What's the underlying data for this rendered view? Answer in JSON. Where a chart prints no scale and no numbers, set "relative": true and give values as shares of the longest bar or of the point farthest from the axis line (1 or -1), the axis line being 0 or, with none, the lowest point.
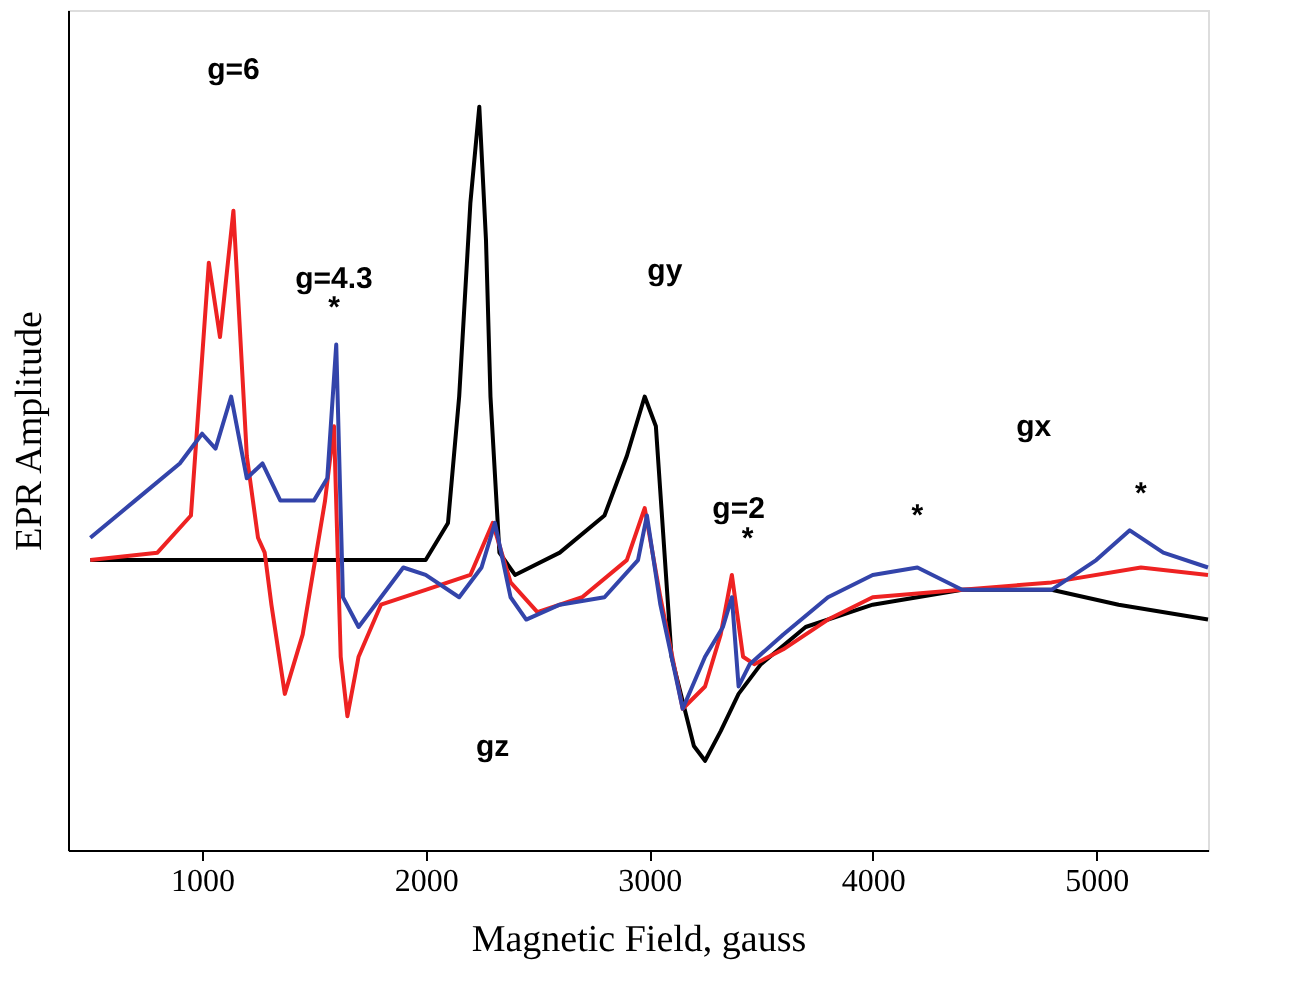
{
  "chart_data": {
    "type": "line",
    "relative": true,
    "xlabel": "Magnetic Field, gauss",
    "ylabel": "EPR Amplitude",
    "xlim": [
      400,
      5500
    ],
    "xticks": [
      1000,
      2000,
      3000,
      4000,
      5000
    ],
    "grid": false,
    "marker": "none",
    "line_style": "solid",
    "series": [
      {
        "color": "#000000",
        "x": [
          500,
          1000,
          1500,
          2000,
          2100,
          2150,
          2200,
          2240,
          2270,
          2290,
          2330,
          2400,
          2600,
          2800,
          2900,
          2980,
          3030,
          3100,
          3200,
          3250,
          3320,
          3400,
          3500,
          3700,
          4000,
          4400,
          4800,
          5100,
          5500
        ],
        "values": [
          0.39,
          0.39,
          0.39,
          0.39,
          0.44,
          0.61,
          0.87,
          1.0,
          0.82,
          0.61,
          0.4,
          0.37,
          0.4,
          0.45,
          0.53,
          0.61,
          0.57,
          0.26,
          0.14,
          0.12,
          0.16,
          0.21,
          0.25,
          0.3,
          0.33,
          0.35,
          0.35,
          0.33,
          0.31
        ]
      },
      {
        "color": "#ee2222",
        "x": [
          500,
          800,
          950,
          1030,
          1080,
          1140,
          1200,
          1250,
          1280,
          1310,
          1370,
          1450,
          1550,
          1590,
          1620,
          1650,
          1700,
          1800,
          2000,
          2200,
          2300,
          2380,
          2500,
          2700,
          2900,
          2980,
          3050,
          3150,
          3250,
          3320,
          3370,
          3420,
          3470,
          3600,
          3800,
          4000,
          4400,
          4800,
          5200,
          5500
        ],
        "values": [
          0.39,
          0.4,
          0.45,
          0.79,
          0.69,
          0.86,
          0.53,
          0.42,
          0.4,
          0.33,
          0.21,
          0.29,
          0.47,
          0.57,
          0.26,
          0.18,
          0.26,
          0.33,
          0.35,
          0.37,
          0.44,
          0.36,
          0.32,
          0.34,
          0.39,
          0.46,
          0.34,
          0.19,
          0.22,
          0.29,
          0.37,
          0.26,
          0.25,
          0.27,
          0.31,
          0.34,
          0.35,
          0.36,
          0.38,
          0.37
        ]
      },
      {
        "color": "#3344aa",
        "x": [
          500,
          700,
          900,
          1000,
          1060,
          1130,
          1200,
          1270,
          1350,
          1500,
          1560,
          1600,
          1630,
          1700,
          1800,
          1900,
          2000,
          2150,
          2250,
          2310,
          2380,
          2450,
          2600,
          2800,
          2950,
          2990,
          3050,
          3150,
          3250,
          3330,
          3370,
          3400,
          3450,
          3600,
          3800,
          4000,
          4200,
          4400,
          4600,
          4800,
          5000,
          5150,
          5300,
          5500
        ],
        "values": [
          0.42,
          0.47,
          0.52,
          0.56,
          0.54,
          0.61,
          0.5,
          0.52,
          0.47,
          0.47,
          0.5,
          0.68,
          0.34,
          0.3,
          0.34,
          0.38,
          0.37,
          0.34,
          0.38,
          0.44,
          0.34,
          0.31,
          0.33,
          0.34,
          0.39,
          0.45,
          0.33,
          0.19,
          0.26,
          0.3,
          0.34,
          0.22,
          0.25,
          0.29,
          0.34,
          0.37,
          0.38,
          0.35,
          0.35,
          0.35,
          0.39,
          0.43,
          0.4,
          0.38
        ]
      }
    ],
    "annotations": [
      "g=6",
      "g=4.3",
      "*",
      "gy",
      "gz",
      "g=2",
      "*",
      "*",
      "gx",
      "*"
    ]
  }
}
